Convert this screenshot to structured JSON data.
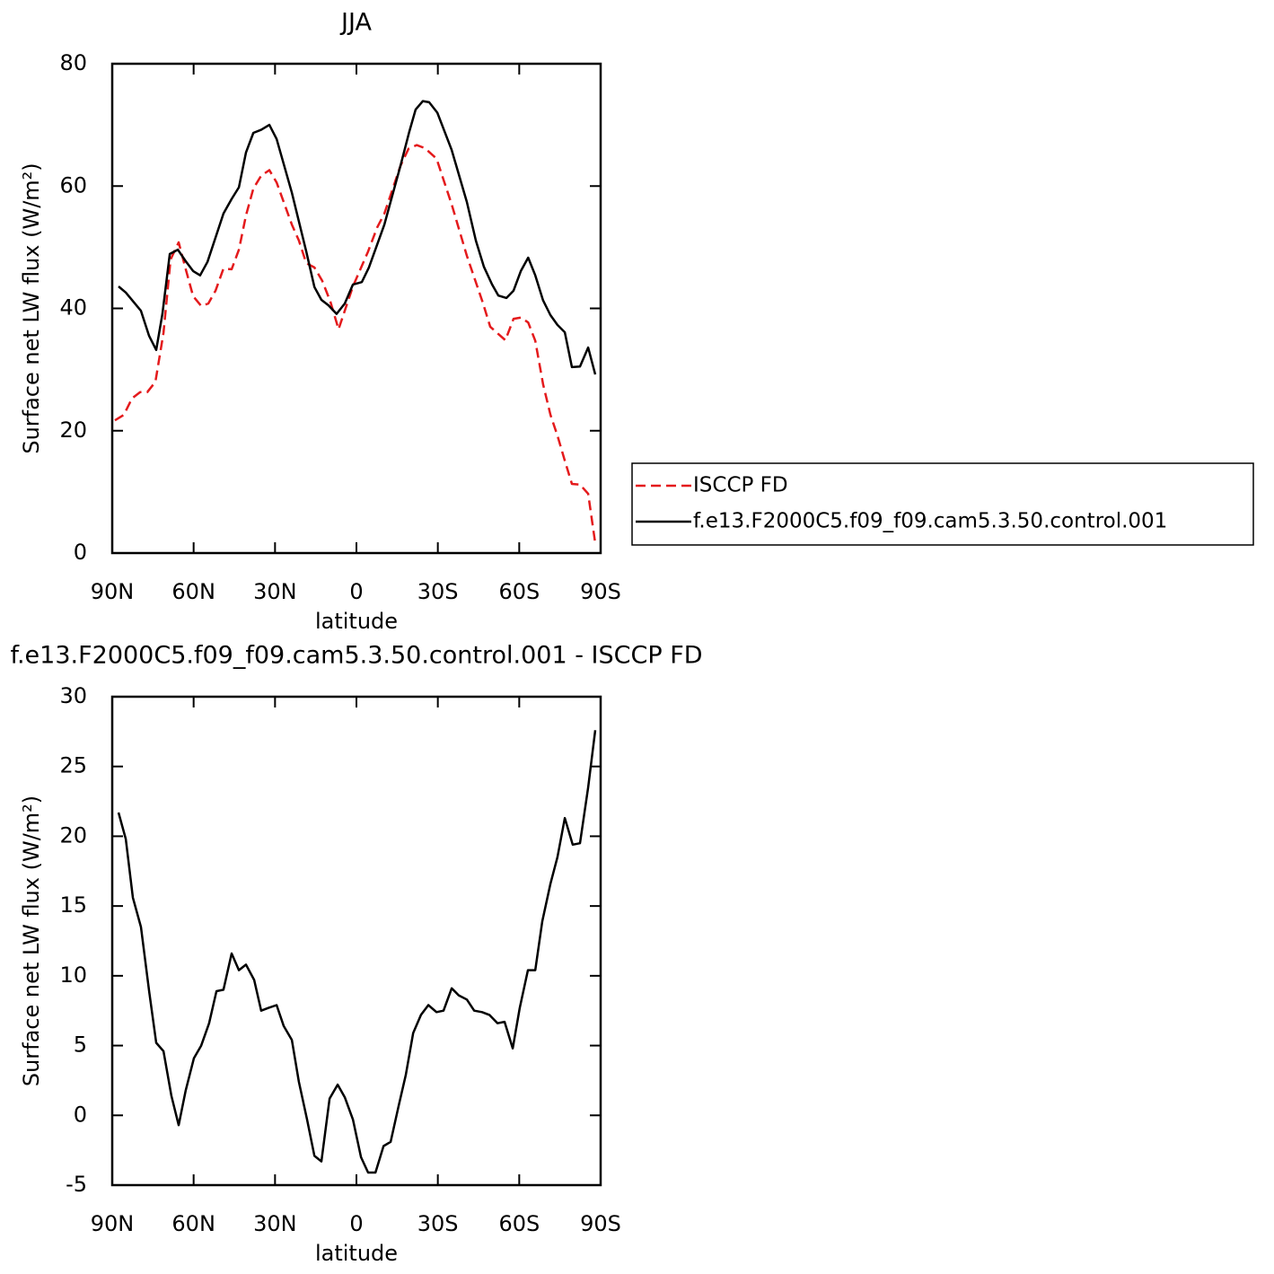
{
  "chart_data": [
    {
      "type": "line",
      "title": "JJA",
      "xlabel": "latitude",
      "ylabel": "Surface net LW flux (W/m²)",
      "xlim": [
        90,
        -90
      ],
      "xticks": [
        {
          "value": 90,
          "label": "90N"
        },
        {
          "value": 60,
          "label": "60N"
        },
        {
          "value": 30,
          "label": "30N"
        },
        0,
        {
          "value": -30,
          "label": "30S"
        },
        {
          "value": -60,
          "label": "60S"
        },
        {
          "value": -90,
          "label": "90S"
        }
      ],
      "ylim": [
        0,
        80
      ],
      "yticks": [
        0,
        20,
        40,
        60,
        80
      ],
      "legend": "outside right",
      "series": [
        {
          "name": "ISCCP FD",
          "color": "#e41a1c",
          "linestyle": "dashed",
          "x": [
            89.0,
            85.7,
            82.7,
            79.7,
            77.1,
            74.1,
            71.1,
            68.5,
            65.5,
            62.9,
            60.2,
            57.2,
            54.6,
            51.9,
            49.0,
            46.0,
            43.3,
            40.7,
            38.0,
            35.1,
            32.1,
            29.4,
            23.8,
            21.2,
            18.5,
            15.5,
            12.6,
            9.6,
            6.6,
            1.3,
            -4.3,
            -7.6,
            -10.3,
            -16.2,
            -19.2,
            -22.2,
            -25.2,
            -29.5,
            -35.1,
            -40.7,
            -46.7,
            -49.3,
            -52.3,
            -54.9,
            -57.9,
            -60.6,
            -63.3,
            -65.9,
            -68.8,
            -71.5,
            -74.1,
            -76.8,
            -79.4,
            -82.4,
            -85.4,
            -88.0
          ],
          "values": [
            21.7,
            22.6,
            25.3,
            26.3,
            26.3,
            28.0,
            36.0,
            48.0,
            50.8,
            46.4,
            42.0,
            40.4,
            40.8,
            42.9,
            46.5,
            46.4,
            49.6,
            55.2,
            59.6,
            61.7,
            62.6,
            60.6,
            53.7,
            51.1,
            47.4,
            46.7,
            44.5,
            41.1,
            36.6,
            43.6,
            49.3,
            53.2,
            55.5,
            63.3,
            66.1,
            66.7,
            66.2,
            64.5,
            57.0,
            48.6,
            40.8,
            37.0,
            35.8,
            34.8,
            38.3,
            38.5,
            37.7,
            34.7,
            27.6,
            22.6,
            19.2,
            15.1,
            11.3,
            11.2,
            9.7,
            1.6
          ]
        },
        {
          "name": "f.e13.F2000C5.f09_f09.cam5.3.50.control.001",
          "color": "#000000",
          "linestyle": "solid",
          "x": [
            87.7,
            85.0,
            79.4,
            76.4,
            73.8,
            71.5,
            68.8,
            65.8,
            62.9,
            60.2,
            57.6,
            54.9,
            49.0,
            46.0,
            43.3,
            40.7,
            38.0,
            35.1,
            32.1,
            29.4,
            23.8,
            18.5,
            15.5,
            12.9,
            10.3,
            7.3,
            4.3,
            1.3,
            -2.0,
            -4.6,
            -10.3,
            -16.2,
            -19.5,
            -21.8,
            -24.5,
            -26.8,
            -29.8,
            -35.1,
            -40.7,
            -44.0,
            -47.0,
            -50.0,
            -52.3,
            -55.3,
            -57.9,
            -60.6,
            -63.3,
            -65.9,
            -68.8,
            -71.5,
            -74.1,
            -76.8,
            -79.4,
            -82.4,
            -85.4,
            -88.0
          ],
          "values": [
            43.6,
            42.6,
            39.6,
            35.5,
            33.2,
            39.1,
            48.9,
            49.6,
            47.7,
            46.1,
            45.4,
            47.6,
            55.5,
            57.9,
            59.8,
            65.5,
            68.7,
            69.2,
            70.0,
            67.7,
            58.9,
            49.3,
            43.5,
            41.4,
            40.5,
            39.1,
            40.8,
            43.9,
            44.3,
            46.7,
            53.7,
            63.3,
            68.9,
            72.5,
            73.9,
            73.7,
            72.0,
            65.9,
            57.4,
            51.1,
            46.8,
            43.9,
            42.1,
            41.7,
            42.9,
            46.1,
            48.3,
            45.4,
            41.3,
            38.9,
            37.3,
            36.1,
            30.4,
            30.5,
            33.6,
            29.2
          ]
        }
      ]
    },
    {
      "type": "line",
      "title": "f.e13.F2000C5.f09_f09.cam5.3.50.control.001 - ISCCP FD",
      "xlabel": "latitude",
      "ylabel": "Surface net LW flux (W/m²)",
      "xlim": [
        90,
        -90
      ],
      "xticks": [
        {
          "value": 90,
          "label": "90N"
        },
        {
          "value": 60,
          "label": "60N"
        },
        {
          "value": 30,
          "label": "30N"
        },
        0,
        {
          "value": -30,
          "label": "30S"
        },
        {
          "value": -60,
          "label": "60S"
        },
        {
          "value": -90,
          "label": "90S"
        }
      ],
      "ylim": [
        -5,
        30
      ],
      "yticks": [
        -5,
        0,
        5,
        10,
        15,
        20,
        25,
        30
      ],
      "series": [
        {
          "color": "#000000",
          "linestyle": "solid",
          "x": [
            87.7,
            85.0,
            82.4,
            79.4,
            76.4,
            73.8,
            71.1,
            68.2,
            65.5,
            62.9,
            59.9,
            57.2,
            54.3,
            51.6,
            49.0,
            46.0,
            43.3,
            40.7,
            37.7,
            35.1,
            32.4,
            29.4,
            26.8,
            23.8,
            21.2,
            18.2,
            15.5,
            12.9,
            9.9,
            6.9,
            4.3,
            1.3,
            -1.7,
            -4.3,
            -7.0,
            -10.0,
            -12.6,
            -15.6,
            -18.2,
            -20.9,
            -23.8,
            -26.5,
            -29.5,
            -32.1,
            -35.1,
            -37.7,
            -40.7,
            -43.4,
            -46.3,
            -49.0,
            -52.0,
            -54.6,
            -57.6,
            -60.2,
            -63.2,
            -65.9,
            -68.5,
            -71.5,
            -74.1,
            -76.8,
            -79.7,
            -82.4,
            -85.4,
            -88.0
          ],
          "values": [
            21.7,
            19.8,
            15.6,
            13.5,
            8.9,
            5.2,
            4.6,
            1.4,
            -0.7,
            1.8,
            4.1,
            5.0,
            6.6,
            8.9,
            9.0,
            11.6,
            10.4,
            10.8,
            9.7,
            7.5,
            7.7,
            7.9,
            6.4,
            5.4,
            2.4,
            -0.3,
            -2.9,
            -3.3,
            1.2,
            2.2,
            1.3,
            -0.3,
            -3.0,
            -4.1,
            -4.1,
            -2.2,
            -1.9,
            0.7,
            2.9,
            5.9,
            7.2,
            7.9,
            7.4,
            7.5,
            9.1,
            8.6,
            8.3,
            7.5,
            7.4,
            7.2,
            6.6,
            6.7,
            4.8,
            7.7,
            10.4,
            10.4,
            13.9,
            16.6,
            18.5,
            21.3,
            19.4,
            19.5,
            23.5,
            27.6
          ]
        }
      ]
    }
  ]
}
